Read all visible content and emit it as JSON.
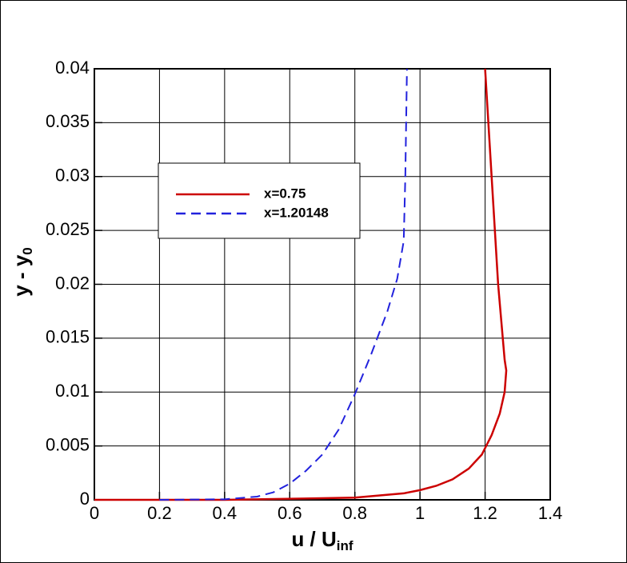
{
  "chart_data": {
    "type": "line",
    "xlabel": "u / U",
    "xlabel_sub": "inf",
    "ylabel": "y - y",
    "ylabel_sub": "0",
    "xlim": [
      0,
      1.4
    ],
    "xticks": [
      0,
      0.2,
      0.4,
      0.6,
      0.8,
      1,
      1.2,
      1.4
    ],
    "ylim": [
      0,
      0.04
    ],
    "yticks": [
      0,
      0.005,
      0.01,
      0.015,
      0.02,
      0.025,
      0.03,
      0.035,
      0.04
    ],
    "grid": true,
    "series": [
      {
        "name": "x=0.75",
        "color": "#cc0000",
        "dash": false,
        "x": [
          0,
          0.4,
          0.8,
          0.95,
          1.0,
          1.05,
          1.1,
          1.15,
          1.19,
          1.22,
          1.245,
          1.26,
          1.265,
          1.26,
          1.24,
          1.22,
          1.2
        ],
        "y": [
          0,
          0,
          0.0002,
          0.0006,
          0.0009,
          0.0013,
          0.0019,
          0.0029,
          0.0042,
          0.006,
          0.008,
          0.01,
          0.012,
          0.013,
          0.02,
          0.03,
          0.04
        ]
      },
      {
        "name": "x=1.20148",
        "color": "#2222dd",
        "dash": true,
        "x": [
          0.2,
          0.4,
          0.5,
          0.55,
          0.6,
          0.65,
          0.7,
          0.75,
          0.8,
          0.85,
          0.9,
          0.93,
          0.95,
          0.955,
          0.96
        ],
        "y": [
          0,
          5e-05,
          0.0003,
          0.0007,
          0.0015,
          0.0027,
          0.0042,
          0.0065,
          0.0098,
          0.0135,
          0.0175,
          0.0205,
          0.024,
          0.03,
          0.04
        ]
      }
    ]
  }
}
